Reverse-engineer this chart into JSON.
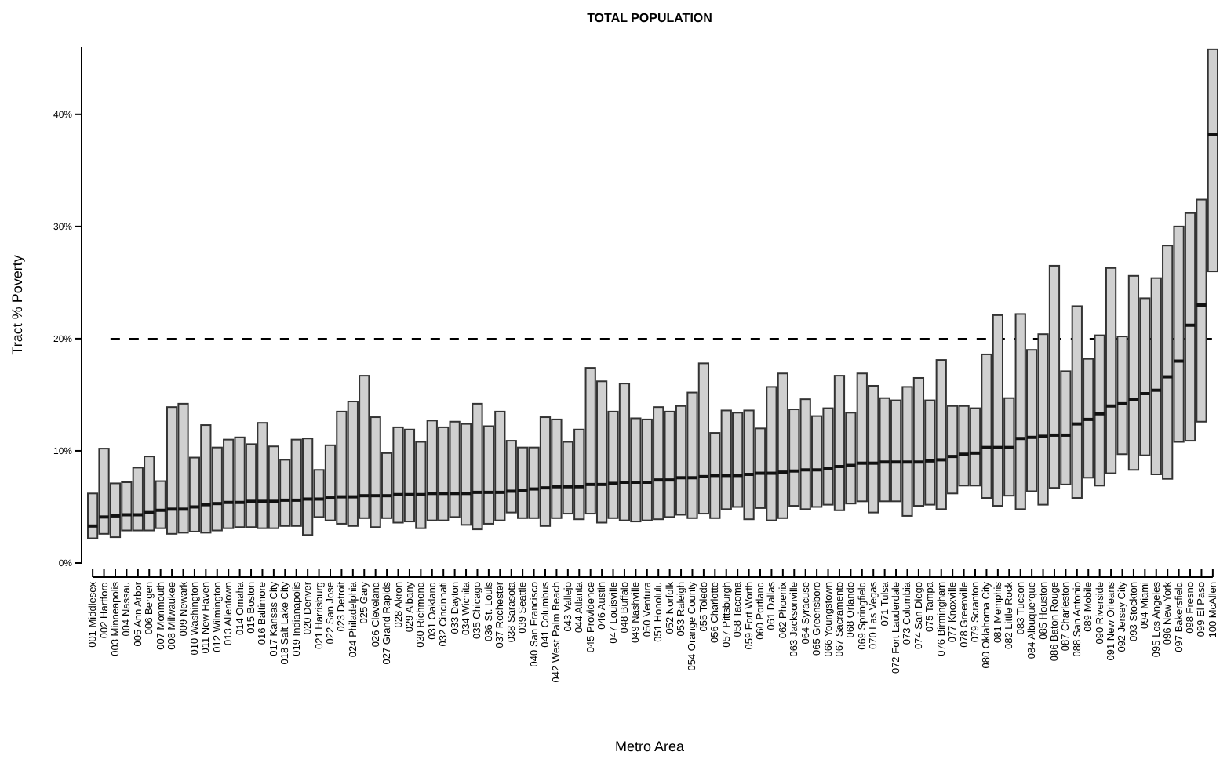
{
  "chart_data": {
    "type": "box",
    "title": "TOTAL POPULATION",
    "xlabel": "Metro Area",
    "ylabel": "Tract % Poverty",
    "color": "#d0d0d0",
    "ylim": [
      0,
      46
    ],
    "yticks": [
      {
        "value": 0,
        "label": "0%"
      },
      {
        "value": 10,
        "label": "10%"
      },
      {
        "value": 20,
        "label": "20%"
      },
      {
        "value": 30,
        "label": "30%"
      },
      {
        "value": 40,
        "label": "40%"
      }
    ],
    "ref_lines": [
      {
        "axis": "y",
        "value": 20,
        "label": null,
        "color": "#000000",
        "line_style": "dashed"
      }
    ],
    "categories": [
      "001 Middlesex",
      "002 Hartford",
      "003 Minneapolis",
      "004 Nassau",
      "005 Ann Arbor",
      "006 Bergen",
      "007 Monmouth",
      "008 Milwaukee",
      "009 Newark",
      "010 Washington",
      "011 New Haven",
      "012 Wilmington",
      "013 Allentown",
      "014 Omaha",
      "015 Boston",
      "016 Baltimore",
      "017 Kansas City",
      "018 Salt Lake City",
      "019 Indianapolis",
      "020 Denver",
      "021 Harrisburg",
      "022 San Jose",
      "023 Detroit",
      "024 Philadelphia",
      "025 Gary",
      "026 Cleveland",
      "027 Grand Rapids",
      "028 Akron",
      "029 Albany",
      "030 Richmond",
      "031 Oakland",
      "032 Cincinnati",
      "033 Dayton",
      "034 Wichita",
      "035 Chicago",
      "036 St. Louis",
      "037 Rochester",
      "038 Sarasota",
      "039 Seattle",
      "040 San Francisco",
      "041 Columbus",
      "042 West Palm Beach",
      "043 Vallejo",
      "044 Atlanta",
      "045 Providence",
      "046 Austin",
      "047 Louisville",
      "048 Buffalo",
      "049 Nashville",
      "050 Ventura",
      "051 Honolulu",
      "052 Norfolk",
      "053 Raleigh",
      "054 Orange County",
      "055 Toledo",
      "056 Charlotte",
      "057 Pittsburgh",
      "058 Tacoma",
      "059 Fort Worth",
      "060 Portland",
      "061 Dallas",
      "062 Phoenix",
      "063 Jacksonville",
      "064 Syracuse",
      "065 Greensboro",
      "066 Youngstown",
      "067 Sacramento",
      "068 Orlando",
      "069 Springfield",
      "070 Las Vegas",
      "071 Tulsa",
      "072 Fort Lauderdale",
      "073 Columbia",
      "074 San Diego",
      "075 Tampa",
      "076 Birmingham",
      "077 Knoxville",
      "078 Greenville",
      "079 Scranton",
      "080 Oklahoma City",
      "081 Memphis",
      "082 Little Rock",
      "083 Tucson",
      "084 Albuquerque",
      "085 Houston",
      "086 Baton Rouge",
      "087 Charleston",
      "088 San Antonio",
      "089 Mobile",
      "090 Riverside",
      "091 New Orleans",
      "092 Jersey City",
      "093 Stockton",
      "094 Miami",
      "095 Los Angeles",
      "096 New York",
      "097 Bakersfield",
      "098 Fresno",
      "099 El Paso",
      "100 McAllen"
    ],
    "boxes": [
      {
        "low": 2.2,
        "q1": 2.2,
        "median": 3.3,
        "q3": 6.2,
        "high": 6.2
      },
      {
        "low": 2.6,
        "q1": 2.6,
        "median": 4.1,
        "q3": 10.2,
        "high": 10.2
      },
      {
        "low": 2.3,
        "q1": 2.3,
        "median": 4.2,
        "q3": 7.1,
        "high": 7.1
      },
      {
        "low": 2.9,
        "q1": 2.9,
        "median": 4.3,
        "q3": 7.2,
        "high": 7.2
      },
      {
        "low": 2.9,
        "q1": 2.9,
        "median": 4.3,
        "q3": 8.5,
        "high": 8.5
      },
      {
        "low": 2.9,
        "q1": 2.9,
        "median": 4.5,
        "q3": 9.5,
        "high": 9.5
      },
      {
        "low": 3.1,
        "q1": 3.1,
        "median": 4.7,
        "q3": 7.3,
        "high": 7.3
      },
      {
        "low": 2.6,
        "q1": 2.6,
        "median": 4.8,
        "q3": 13.9,
        "high": 13.9
      },
      {
        "low": 2.7,
        "q1": 2.7,
        "median": 4.8,
        "q3": 14.2,
        "high": 14.2
      },
      {
        "low": 2.8,
        "q1": 2.8,
        "median": 5.0,
        "q3": 9.4,
        "high": 9.4
      },
      {
        "low": 2.7,
        "q1": 2.7,
        "median": 5.2,
        "q3": 12.3,
        "high": 12.3
      },
      {
        "low": 2.9,
        "q1": 2.9,
        "median": 5.3,
        "q3": 10.3,
        "high": 10.3
      },
      {
        "low": 3.1,
        "q1": 3.1,
        "median": 5.4,
        "q3": 11.0,
        "high": 11.0
      },
      {
        "low": 3.2,
        "q1": 3.2,
        "median": 5.4,
        "q3": 11.2,
        "high": 11.2
      },
      {
        "low": 3.2,
        "q1": 3.2,
        "median": 5.5,
        "q3": 10.6,
        "high": 10.6
      },
      {
        "low": 3.1,
        "q1": 3.1,
        "median": 5.5,
        "q3": 12.5,
        "high": 12.5
      },
      {
        "low": 3.1,
        "q1": 3.1,
        "median": 5.5,
        "q3": 10.4,
        "high": 10.4
      },
      {
        "low": 3.3,
        "q1": 3.3,
        "median": 5.6,
        "q3": 9.2,
        "high": 9.2
      },
      {
        "low": 3.3,
        "q1": 3.3,
        "median": 5.6,
        "q3": 11.0,
        "high": 11.0
      },
      {
        "low": 2.5,
        "q1": 2.5,
        "median": 5.7,
        "q3": 11.1,
        "high": 11.1
      },
      {
        "low": 4.1,
        "q1": 4.1,
        "median": 5.7,
        "q3": 8.3,
        "high": 8.3
      },
      {
        "low": 3.8,
        "q1": 3.8,
        "median": 5.8,
        "q3": 10.5,
        "high": 10.5
      },
      {
        "low": 3.5,
        "q1": 3.5,
        "median": 5.9,
        "q3": 13.5,
        "high": 13.5
      },
      {
        "low": 3.3,
        "q1": 3.3,
        "median": 5.9,
        "q3": 14.4,
        "high": 14.4
      },
      {
        "low": 4.0,
        "q1": 4.0,
        "median": 6.0,
        "q3": 16.7,
        "high": 16.7
      },
      {
        "low": 3.2,
        "q1": 3.2,
        "median": 6.0,
        "q3": 13.0,
        "high": 13.0
      },
      {
        "low": 4.0,
        "q1": 4.0,
        "median": 6.0,
        "q3": 9.8,
        "high": 9.8
      },
      {
        "low": 3.6,
        "q1": 3.6,
        "median": 6.1,
        "q3": 12.1,
        "high": 12.1
      },
      {
        "low": 3.7,
        "q1": 3.7,
        "median": 6.1,
        "q3": 11.9,
        "high": 11.9
      },
      {
        "low": 3.1,
        "q1": 3.1,
        "median": 6.1,
        "q3": 10.8,
        "high": 10.8
      },
      {
        "low": 3.8,
        "q1": 3.8,
        "median": 6.2,
        "q3": 12.7,
        "high": 12.7
      },
      {
        "low": 3.8,
        "q1": 3.8,
        "median": 6.2,
        "q3": 12.1,
        "high": 12.1
      },
      {
        "low": 4.1,
        "q1": 4.1,
        "median": 6.2,
        "q3": 12.6,
        "high": 12.6
      },
      {
        "low": 3.4,
        "q1": 3.4,
        "median": 6.2,
        "q3": 12.4,
        "high": 12.4
      },
      {
        "low": 3.0,
        "q1": 3.0,
        "median": 6.3,
        "q3": 14.2,
        "high": 14.2
      },
      {
        "low": 3.5,
        "q1": 3.5,
        "median": 6.3,
        "q3": 12.2,
        "high": 12.2
      },
      {
        "low": 3.8,
        "q1": 3.8,
        "median": 6.3,
        "q3": 13.5,
        "high": 13.5
      },
      {
        "low": 4.5,
        "q1": 4.5,
        "median": 6.4,
        "q3": 10.9,
        "high": 10.9
      },
      {
        "low": 4.0,
        "q1": 4.0,
        "median": 6.5,
        "q3": 10.3,
        "high": 10.3
      },
      {
        "low": 4.0,
        "q1": 4.0,
        "median": 6.6,
        "q3": 10.3,
        "high": 10.3
      },
      {
        "low": 3.3,
        "q1": 3.3,
        "median": 6.7,
        "q3": 13.0,
        "high": 13.0
      },
      {
        "low": 4.0,
        "q1": 4.0,
        "median": 6.8,
        "q3": 12.8,
        "high": 12.8
      },
      {
        "low": 4.4,
        "q1": 4.4,
        "median": 6.8,
        "q3": 10.8,
        "high": 10.8
      },
      {
        "low": 3.9,
        "q1": 3.9,
        "median": 6.8,
        "q3": 11.9,
        "high": 11.9
      },
      {
        "low": 4.4,
        "q1": 4.4,
        "median": 7.0,
        "q3": 17.4,
        "high": 17.4
      },
      {
        "low": 3.6,
        "q1": 3.6,
        "median": 7.0,
        "q3": 16.2,
        "high": 16.2
      },
      {
        "low": 4.0,
        "q1": 4.0,
        "median": 7.1,
        "q3": 13.5,
        "high": 13.5
      },
      {
        "low": 3.8,
        "q1": 3.8,
        "median": 7.2,
        "q3": 16.0,
        "high": 16.0
      },
      {
        "low": 3.7,
        "q1": 3.7,
        "median": 7.2,
        "q3": 12.9,
        "high": 12.9
      },
      {
        "low": 3.8,
        "q1": 3.8,
        "median": 7.2,
        "q3": 12.8,
        "high": 12.8
      },
      {
        "low": 3.9,
        "q1": 3.9,
        "median": 7.4,
        "q3": 13.9,
        "high": 13.9
      },
      {
        "low": 4.1,
        "q1": 4.1,
        "median": 7.4,
        "q3": 13.5,
        "high": 13.5
      },
      {
        "low": 4.3,
        "q1": 4.3,
        "median": 7.6,
        "q3": 14.0,
        "high": 14.0
      },
      {
        "low": 4.0,
        "q1": 4.0,
        "median": 7.6,
        "q3": 15.2,
        "high": 15.2
      },
      {
        "low": 4.4,
        "q1": 4.4,
        "median": 7.7,
        "q3": 17.8,
        "high": 17.8
      },
      {
        "low": 4.0,
        "q1": 4.0,
        "median": 7.8,
        "q3": 11.6,
        "high": 11.6
      },
      {
        "low": 4.8,
        "q1": 4.8,
        "median": 7.8,
        "q3": 13.6,
        "high": 13.6
      },
      {
        "low": 5.0,
        "q1": 5.0,
        "median": 7.8,
        "q3": 13.4,
        "high": 13.4
      },
      {
        "low": 3.9,
        "q1": 3.9,
        "median": 7.9,
        "q3": 13.6,
        "high": 13.6
      },
      {
        "low": 4.9,
        "q1": 4.9,
        "median": 8.0,
        "q3": 12.0,
        "high": 12.0
      },
      {
        "low": 3.8,
        "q1": 3.8,
        "median": 8.0,
        "q3": 15.7,
        "high": 15.7
      },
      {
        "low": 4.0,
        "q1": 4.0,
        "median": 8.1,
        "q3": 16.9,
        "high": 16.9
      },
      {
        "low": 5.1,
        "q1": 5.1,
        "median": 8.2,
        "q3": 13.7,
        "high": 13.7
      },
      {
        "low": 4.8,
        "q1": 4.8,
        "median": 8.3,
        "q3": 14.6,
        "high": 14.6
      },
      {
        "low": 5.0,
        "q1": 5.0,
        "median": 8.3,
        "q3": 13.1,
        "high": 13.1
      },
      {
        "low": 5.2,
        "q1": 5.2,
        "median": 8.4,
        "q3": 13.8,
        "high": 13.8
      },
      {
        "low": 4.7,
        "q1": 4.7,
        "median": 8.6,
        "q3": 16.7,
        "high": 16.7
      },
      {
        "low": 5.3,
        "q1": 5.3,
        "median": 8.7,
        "q3": 13.4,
        "high": 13.4
      },
      {
        "low": 5.5,
        "q1": 5.5,
        "median": 8.9,
        "q3": 16.9,
        "high": 16.9
      },
      {
        "low": 4.5,
        "q1": 4.5,
        "median": 8.9,
        "q3": 15.8,
        "high": 15.8
      },
      {
        "low": 5.5,
        "q1": 5.5,
        "median": 9.0,
        "q3": 14.7,
        "high": 14.7
      },
      {
        "low": 5.5,
        "q1": 5.5,
        "median": 9.0,
        "q3": 14.5,
        "high": 14.5
      },
      {
        "low": 4.2,
        "q1": 4.2,
        "median": 9.0,
        "q3": 15.7,
        "high": 15.7
      },
      {
        "low": 5.1,
        "q1": 5.1,
        "median": 9.0,
        "q3": 16.5,
        "high": 16.5
      },
      {
        "low": 5.2,
        "q1": 5.2,
        "median": 9.1,
        "q3": 14.5,
        "high": 14.5
      },
      {
        "low": 4.8,
        "q1": 4.8,
        "median": 9.2,
        "q3": 18.1,
        "high": 18.1
      },
      {
        "low": 6.2,
        "q1": 6.2,
        "median": 9.5,
        "q3": 14.0,
        "high": 14.0
      },
      {
        "low": 6.9,
        "q1": 6.9,
        "median": 9.7,
        "q3": 14.0,
        "high": 14.0
      },
      {
        "low": 6.9,
        "q1": 6.9,
        "median": 9.8,
        "q3": 13.8,
        "high": 13.8
      },
      {
        "low": 5.8,
        "q1": 5.8,
        "median": 10.3,
        "q3": 18.6,
        "high": 18.6
      },
      {
        "low": 5.1,
        "q1": 5.1,
        "median": 10.3,
        "q3": 22.1,
        "high": 22.1
      },
      {
        "low": 6.0,
        "q1": 6.0,
        "median": 10.3,
        "q3": 14.7,
        "high": 14.7
      },
      {
        "low": 4.8,
        "q1": 4.8,
        "median": 11.1,
        "q3": 22.2,
        "high": 22.2
      },
      {
        "low": 6.4,
        "q1": 6.4,
        "median": 11.2,
        "q3": 19.0,
        "high": 19.0
      },
      {
        "low": 5.2,
        "q1": 5.2,
        "median": 11.3,
        "q3": 20.4,
        "high": 20.4
      },
      {
        "low": 6.7,
        "q1": 6.7,
        "median": 11.4,
        "q3": 26.5,
        "high": 26.5
      },
      {
        "low": 7.0,
        "q1": 7.0,
        "median": 11.4,
        "q3": 17.1,
        "high": 17.1
      },
      {
        "low": 5.8,
        "q1": 5.8,
        "median": 12.4,
        "q3": 22.9,
        "high": 22.9
      },
      {
        "low": 7.6,
        "q1": 7.6,
        "median": 12.8,
        "q3": 18.2,
        "high": 18.2
      },
      {
        "low": 6.9,
        "q1": 6.9,
        "median": 13.3,
        "q3": 20.3,
        "high": 20.3
      },
      {
        "low": 8.0,
        "q1": 8.0,
        "median": 14.0,
        "q3": 26.3,
        "high": 26.3
      },
      {
        "low": 9.7,
        "q1": 9.7,
        "median": 14.2,
        "q3": 20.2,
        "high": 20.2
      },
      {
        "low": 8.3,
        "q1": 8.3,
        "median": 14.6,
        "q3": 25.6,
        "high": 25.6
      },
      {
        "low": 9.6,
        "q1": 9.6,
        "median": 15.1,
        "q3": 23.6,
        "high": 23.6
      },
      {
        "low": 7.9,
        "q1": 7.9,
        "median": 15.4,
        "q3": 25.4,
        "high": 25.4
      },
      {
        "low": 7.5,
        "q1": 7.5,
        "median": 16.6,
        "q3": 28.3,
        "high": 28.3
      },
      {
        "low": 10.8,
        "q1": 10.8,
        "median": 18.0,
        "q3": 30.0,
        "high": 30.0
      },
      {
        "low": 10.9,
        "q1": 10.9,
        "median": 21.2,
        "q3": 31.2,
        "high": 31.2
      },
      {
        "low": 12.6,
        "q1": 12.6,
        "median": 23.0,
        "q3": 32.4,
        "high": 32.4
      },
      {
        "low": 26.0,
        "q1": 26.0,
        "median": 38.2,
        "q3": 45.8,
        "high": 45.8
      }
    ]
  }
}
